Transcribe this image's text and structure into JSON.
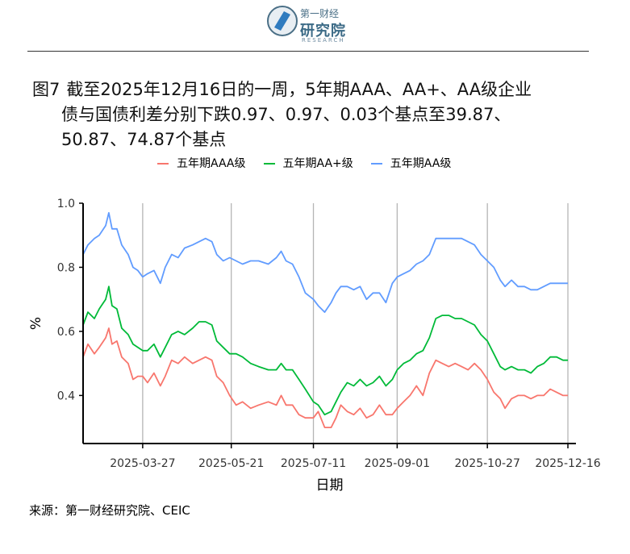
{
  "header": {
    "logo_cn_small": "第一财经",
    "logo_cn_big": "研究院",
    "logo_en": "RESEARCH"
  },
  "figure": {
    "number": "图7",
    "title_line1": "截至2025年12月16日的一周，5年期AAA、AA+、AA级企业",
    "title_line2": "债与国债利差分别下跌0.97、0.97、0.03个基点至39.87、",
    "title_line3": "50.87、74.87个基点"
  },
  "source": "来源：第一财经研究院、CEIC",
  "chart_data": {
    "type": "line",
    "xlabel": "日期",
    "ylabel": "%",
    "ylim": [
      0.25,
      1.0
    ],
    "yticks": [
      0.4,
      0.6,
      0.8,
      1.0
    ],
    "ytick_labels": [
      "0.4",
      "0.6",
      "0.8",
      "1.0"
    ],
    "xlim": [
      "2025-02-18",
      "2025-12-21"
    ],
    "xticks": [
      "2025-03-27",
      "2025-05-21",
      "2025-07-11",
      "2025-09-01",
      "2025-10-27",
      "2025-12-16"
    ],
    "grid": "vertical",
    "legend_position": "top",
    "series": [
      {
        "name": "五年期AAA级",
        "color": "#F8766D",
        "points": [
          [
            "2025-02-18",
            0.52
          ],
          [
            "2025-02-21",
            0.56
          ],
          [
            "2025-02-25",
            0.53
          ],
          [
            "2025-02-28",
            0.55
          ],
          [
            "2025-03-04",
            0.58
          ],
          [
            "2025-03-06",
            0.61
          ],
          [
            "2025-03-08",
            0.56
          ],
          [
            "2025-03-11",
            0.57
          ],
          [
            "2025-03-14",
            0.52
          ],
          [
            "2025-03-18",
            0.5
          ],
          [
            "2025-03-21",
            0.45
          ],
          [
            "2025-03-24",
            0.46
          ],
          [
            "2025-03-27",
            0.46
          ],
          [
            "2025-03-30",
            0.44
          ],
          [
            "2025-04-03",
            0.47
          ],
          [
            "2025-04-07",
            0.43
          ],
          [
            "2025-04-10",
            0.46
          ],
          [
            "2025-04-14",
            0.51
          ],
          [
            "2025-04-18",
            0.5
          ],
          [
            "2025-04-22",
            0.52
          ],
          [
            "2025-04-27",
            0.5
          ],
          [
            "2025-05-01",
            0.51
          ],
          [
            "2025-05-05",
            0.52
          ],
          [
            "2025-05-09",
            0.51
          ],
          [
            "2025-05-12",
            0.46
          ],
          [
            "2025-05-16",
            0.44
          ],
          [
            "2025-05-20",
            0.4
          ],
          [
            "2025-05-24",
            0.37
          ],
          [
            "2025-05-28",
            0.38
          ],
          [
            "2025-06-02",
            0.36
          ],
          [
            "2025-06-07",
            0.37
          ],
          [
            "2025-06-13",
            0.38
          ],
          [
            "2025-06-18",
            0.37
          ],
          [
            "2025-06-21",
            0.4
          ],
          [
            "2025-06-24",
            0.37
          ],
          [
            "2025-06-28",
            0.37
          ],
          [
            "2025-07-02",
            0.34
          ],
          [
            "2025-07-06",
            0.33
          ],
          [
            "2025-07-11",
            0.33
          ],
          [
            "2025-07-14",
            0.35
          ],
          [
            "2025-07-18",
            0.3
          ],
          [
            "2025-07-22",
            0.3
          ],
          [
            "2025-07-25",
            0.33
          ],
          [
            "2025-07-28",
            0.37
          ],
          [
            "2025-08-01",
            0.35
          ],
          [
            "2025-08-05",
            0.34
          ],
          [
            "2025-08-09",
            0.36
          ],
          [
            "2025-08-13",
            0.33
          ],
          [
            "2025-08-17",
            0.34
          ],
          [
            "2025-08-21",
            0.37
          ],
          [
            "2025-08-25",
            0.34
          ],
          [
            "2025-08-29",
            0.34
          ],
          [
            "2025-09-01",
            0.36
          ],
          [
            "2025-09-05",
            0.38
          ],
          [
            "2025-09-09",
            0.4
          ],
          [
            "2025-09-13",
            0.43
          ],
          [
            "2025-09-17",
            0.4
          ],
          [
            "2025-09-21",
            0.47
          ],
          [
            "2025-09-25",
            0.51
          ],
          [
            "2025-09-29",
            0.5
          ],
          [
            "2025-10-03",
            0.49
          ],
          [
            "2025-10-07",
            0.5
          ],
          [
            "2025-10-11",
            0.49
          ],
          [
            "2025-10-15",
            0.48
          ],
          [
            "2025-10-19",
            0.5
          ],
          [
            "2025-10-23",
            0.48
          ],
          [
            "2025-10-27",
            0.45
          ],
          [
            "2025-10-31",
            0.41
          ],
          [
            "2025-11-04",
            0.39
          ],
          [
            "2025-11-07",
            0.36
          ],
          [
            "2025-11-11",
            0.39
          ],
          [
            "2025-11-15",
            0.4
          ],
          [
            "2025-11-19",
            0.4
          ],
          [
            "2025-11-23",
            0.39
          ],
          [
            "2025-11-27",
            0.4
          ],
          [
            "2025-12-01",
            0.4
          ],
          [
            "2025-12-05",
            0.42
          ],
          [
            "2025-12-09",
            0.41
          ],
          [
            "2025-12-13",
            0.4
          ],
          [
            "2025-12-16",
            0.4
          ]
        ]
      },
      {
        "name": "五年期AA+级",
        "color": "#00BA38",
        "points": [
          [
            "2025-02-18",
            0.62
          ],
          [
            "2025-02-21",
            0.66
          ],
          [
            "2025-02-25",
            0.64
          ],
          [
            "2025-02-28",
            0.67
          ],
          [
            "2025-03-04",
            0.7
          ],
          [
            "2025-03-06",
            0.74
          ],
          [
            "2025-03-08",
            0.68
          ],
          [
            "2025-03-11",
            0.67
          ],
          [
            "2025-03-14",
            0.61
          ],
          [
            "2025-03-18",
            0.59
          ],
          [
            "2025-03-21",
            0.56
          ],
          [
            "2025-03-24",
            0.55
          ],
          [
            "2025-03-27",
            0.54
          ],
          [
            "2025-03-30",
            0.54
          ],
          [
            "2025-04-03",
            0.56
          ],
          [
            "2025-04-07",
            0.52
          ],
          [
            "2025-04-10",
            0.55
          ],
          [
            "2025-04-14",
            0.59
          ],
          [
            "2025-04-18",
            0.6
          ],
          [
            "2025-04-22",
            0.59
          ],
          [
            "2025-04-27",
            0.61
          ],
          [
            "2025-05-01",
            0.63
          ],
          [
            "2025-05-05",
            0.63
          ],
          [
            "2025-05-09",
            0.62
          ],
          [
            "2025-05-12",
            0.57
          ],
          [
            "2025-05-16",
            0.55
          ],
          [
            "2025-05-20",
            0.53
          ],
          [
            "2025-05-24",
            0.53
          ],
          [
            "2025-05-28",
            0.52
          ],
          [
            "2025-06-02",
            0.5
          ],
          [
            "2025-06-07",
            0.49
          ],
          [
            "2025-06-13",
            0.48
          ],
          [
            "2025-06-18",
            0.48
          ],
          [
            "2025-06-21",
            0.5
          ],
          [
            "2025-06-24",
            0.48
          ],
          [
            "2025-06-28",
            0.48
          ],
          [
            "2025-07-02",
            0.45
          ],
          [
            "2025-07-06",
            0.42
          ],
          [
            "2025-07-11",
            0.38
          ],
          [
            "2025-07-14",
            0.37
          ],
          [
            "2025-07-18",
            0.34
          ],
          [
            "2025-07-22",
            0.35
          ],
          [
            "2025-07-25",
            0.38
          ],
          [
            "2025-07-28",
            0.41
          ],
          [
            "2025-08-01",
            0.44
          ],
          [
            "2025-08-05",
            0.43
          ],
          [
            "2025-08-09",
            0.45
          ],
          [
            "2025-08-13",
            0.43
          ],
          [
            "2025-08-17",
            0.44
          ],
          [
            "2025-08-21",
            0.46
          ],
          [
            "2025-08-25",
            0.43
          ],
          [
            "2025-08-29",
            0.45
          ],
          [
            "2025-09-01",
            0.48
          ],
          [
            "2025-09-05",
            0.5
          ],
          [
            "2025-09-09",
            0.51
          ],
          [
            "2025-09-13",
            0.53
          ],
          [
            "2025-09-17",
            0.54
          ],
          [
            "2025-09-21",
            0.58
          ],
          [
            "2025-09-25",
            0.64
          ],
          [
            "2025-09-29",
            0.65
          ],
          [
            "2025-10-03",
            0.65
          ],
          [
            "2025-10-07",
            0.64
          ],
          [
            "2025-10-11",
            0.64
          ],
          [
            "2025-10-15",
            0.63
          ],
          [
            "2025-10-19",
            0.62
          ],
          [
            "2025-10-23",
            0.59
          ],
          [
            "2025-10-27",
            0.57
          ],
          [
            "2025-10-31",
            0.53
          ],
          [
            "2025-11-04",
            0.49
          ],
          [
            "2025-11-07",
            0.48
          ],
          [
            "2025-11-11",
            0.49
          ],
          [
            "2025-11-15",
            0.48
          ],
          [
            "2025-11-19",
            0.48
          ],
          [
            "2025-11-23",
            0.47
          ],
          [
            "2025-11-27",
            0.49
          ],
          [
            "2025-12-01",
            0.5
          ],
          [
            "2025-12-05",
            0.52
          ],
          [
            "2025-12-09",
            0.52
          ],
          [
            "2025-12-13",
            0.51
          ],
          [
            "2025-12-16",
            0.51
          ]
        ]
      },
      {
        "name": "五年期AA级",
        "color": "#619CFF",
        "points": [
          [
            "2025-02-18",
            0.84
          ],
          [
            "2025-02-21",
            0.87
          ],
          [
            "2025-02-25",
            0.89
          ],
          [
            "2025-02-28",
            0.9
          ],
          [
            "2025-03-04",
            0.93
          ],
          [
            "2025-03-06",
            0.97
          ],
          [
            "2025-03-08",
            0.92
          ],
          [
            "2025-03-11",
            0.92
          ],
          [
            "2025-03-14",
            0.87
          ],
          [
            "2025-03-18",
            0.84
          ],
          [
            "2025-03-21",
            0.8
          ],
          [
            "2025-03-24",
            0.79
          ],
          [
            "2025-03-27",
            0.77
          ],
          [
            "2025-03-30",
            0.78
          ],
          [
            "2025-04-03",
            0.79
          ],
          [
            "2025-04-07",
            0.75
          ],
          [
            "2025-04-10",
            0.8
          ],
          [
            "2025-04-14",
            0.84
          ],
          [
            "2025-04-18",
            0.83
          ],
          [
            "2025-04-22",
            0.86
          ],
          [
            "2025-04-27",
            0.87
          ],
          [
            "2025-05-01",
            0.88
          ],
          [
            "2025-05-05",
            0.89
          ],
          [
            "2025-05-09",
            0.88
          ],
          [
            "2025-05-12",
            0.84
          ],
          [
            "2025-05-16",
            0.82
          ],
          [
            "2025-05-20",
            0.83
          ],
          [
            "2025-05-24",
            0.82
          ],
          [
            "2025-05-28",
            0.81
          ],
          [
            "2025-06-02",
            0.82
          ],
          [
            "2025-06-07",
            0.82
          ],
          [
            "2025-06-13",
            0.81
          ],
          [
            "2025-06-18",
            0.83
          ],
          [
            "2025-06-21",
            0.85
          ],
          [
            "2025-06-24",
            0.82
          ],
          [
            "2025-06-28",
            0.81
          ],
          [
            "2025-07-02",
            0.77
          ],
          [
            "2025-07-06",
            0.72
          ],
          [
            "2025-07-11",
            0.7
          ],
          [
            "2025-07-14",
            0.68
          ],
          [
            "2025-07-18",
            0.66
          ],
          [
            "2025-07-22",
            0.69
          ],
          [
            "2025-07-25",
            0.72
          ],
          [
            "2025-07-28",
            0.74
          ],
          [
            "2025-08-01",
            0.74
          ],
          [
            "2025-08-05",
            0.73
          ],
          [
            "2025-08-09",
            0.74
          ],
          [
            "2025-08-13",
            0.7
          ],
          [
            "2025-08-17",
            0.72
          ],
          [
            "2025-08-21",
            0.72
          ],
          [
            "2025-08-25",
            0.69
          ],
          [
            "2025-08-29",
            0.75
          ],
          [
            "2025-09-01",
            0.77
          ],
          [
            "2025-09-05",
            0.78
          ],
          [
            "2025-09-09",
            0.79
          ],
          [
            "2025-09-13",
            0.81
          ],
          [
            "2025-09-17",
            0.82
          ],
          [
            "2025-09-21",
            0.84
          ],
          [
            "2025-09-25",
            0.89
          ],
          [
            "2025-09-29",
            0.89
          ],
          [
            "2025-10-03",
            0.89
          ],
          [
            "2025-10-07",
            0.89
          ],
          [
            "2025-10-11",
            0.89
          ],
          [
            "2025-10-15",
            0.88
          ],
          [
            "2025-10-19",
            0.87
          ],
          [
            "2025-10-23",
            0.84
          ],
          [
            "2025-10-27",
            0.82
          ],
          [
            "2025-10-31",
            0.8
          ],
          [
            "2025-11-04",
            0.76
          ],
          [
            "2025-11-07",
            0.74
          ],
          [
            "2025-11-11",
            0.76
          ],
          [
            "2025-11-15",
            0.74
          ],
          [
            "2025-11-19",
            0.74
          ],
          [
            "2025-11-23",
            0.73
          ],
          [
            "2025-11-27",
            0.73
          ],
          [
            "2025-12-01",
            0.74
          ],
          [
            "2025-12-05",
            0.75
          ],
          [
            "2025-12-09",
            0.75
          ],
          [
            "2025-12-13",
            0.75
          ],
          [
            "2025-12-16",
            0.75
          ]
        ]
      }
    ]
  }
}
